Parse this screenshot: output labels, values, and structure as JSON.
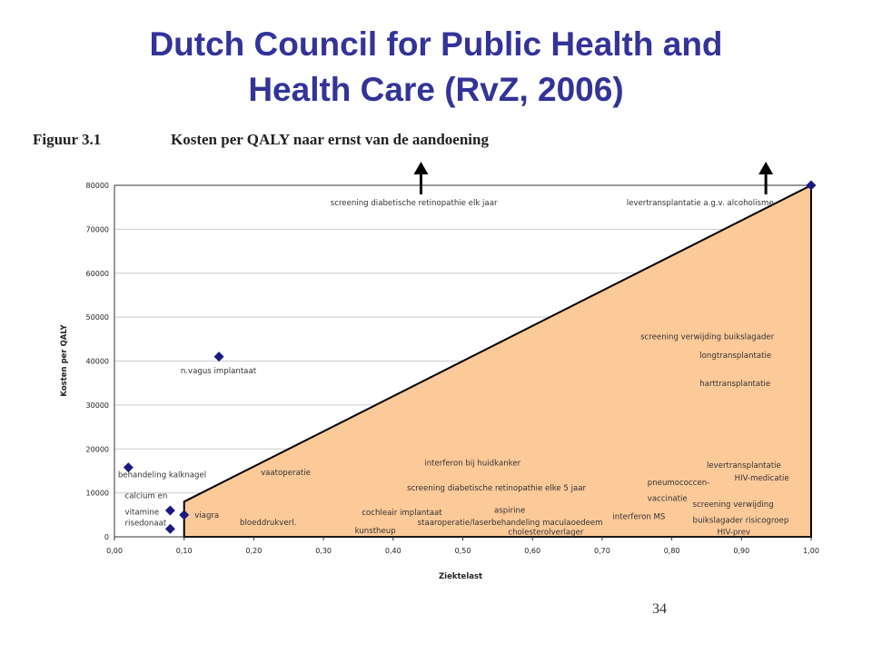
{
  "slide": {
    "title_line1": "Dutch Council for Public Health and",
    "title_line2": "Health Care (RvZ, 2006)",
    "figure_number": "Figuur 3.1",
    "figure_title": "Kosten per QALY naar ernst van de aandoening",
    "page_number": "34"
  },
  "colors": {
    "title": "#333399",
    "fill_region": "#fcc999",
    "marker": "#1a1a80"
  },
  "chart_data": {
    "type": "scatter",
    "title": "Kosten per QALY naar ernst van de aandoening",
    "xlabel": "Ziektelast",
    "ylabel": "Kosten per QALY",
    "xlim": [
      0,
      1
    ],
    "ylim": [
      0,
      80000
    ],
    "grid": "horizontal",
    "x_ticks": [
      "0,00",
      "0,10",
      "0,20",
      "0,30",
      "0,40",
      "0,50",
      "0,60",
      "0,70",
      "0,80",
      "0,90",
      "1,00"
    ],
    "y_ticks": [
      "0",
      "10000",
      "20000",
      "30000",
      "40000",
      "50000",
      "60000",
      "70000",
      "80000"
    ],
    "region": {
      "x": [
        0.1,
        0.1,
        1.0,
        1.0
      ],
      "y": [
        0,
        8000,
        80000,
        0
      ]
    },
    "points": [
      {
        "x": 0.02,
        "y": 15800
      },
      {
        "x": 0.08,
        "y": 6000
      },
      {
        "x": 0.08,
        "y": 1800
      },
      {
        "x": 0.1,
        "y": 5000
      },
      {
        "x": 0.15,
        "y": 41000
      },
      {
        "x": 1.0,
        "y": 80000
      }
    ],
    "arrows": [
      {
        "x": 0.44,
        "y": 80000
      },
      {
        "x": 0.935,
        "y": 80000
      }
    ],
    "annotations": [
      {
        "text": "screening diabetische retinopathie elk jaar",
        "x": 0.31,
        "y": 75500
      },
      {
        "text": "levertransplantatie a.g.v. alcoholisme",
        "x": 0.735,
        "y": 75500
      },
      {
        "text": "n.vagus implantaat",
        "x": 0.095,
        "y": 37200
      },
      {
        "text": "screening verwijding buikslagader",
        "x": 0.755,
        "y": 45000
      },
      {
        "text": "longtransplantatie",
        "x": 0.84,
        "y": 40700
      },
      {
        "text": "harttransplantatie",
        "x": 0.84,
        "y": 34300
      },
      {
        "text": "behandeling kalknagel",
        "x": 0.005,
        "y": 13500
      },
      {
        "text": "calcium en",
        "x": 0.015,
        "y": 8800
      },
      {
        "text": "vitamine",
        "x": 0.015,
        "y": 5100
      },
      {
        "text": "risedonaat",
        "x": 0.015,
        "y": 2600
      },
      {
        "text": "vaatoperatie",
        "x": 0.21,
        "y": 14100
      },
      {
        "text": "interferon bij huidkanker",
        "x": 0.445,
        "y": 16200
      },
      {
        "text": "levertransplantatie",
        "x": 0.85,
        "y": 15700
      },
      {
        "text": "HIV-medicatie",
        "x": 0.89,
        "y": 12800
      },
      {
        "text": "screening diabetische retinopathie elke 5 jaar",
        "x": 0.42,
        "y": 10500
      },
      {
        "text": "pneumococcen-",
        "x": 0.765,
        "y": 11800
      },
      {
        "text": "vaccinatie",
        "x": 0.765,
        "y": 8200
      },
      {
        "text": "screening verwijding",
        "x": 0.83,
        "y": 6800
      },
      {
        "text": "buikslagader risicogroep",
        "x": 0.83,
        "y": 3200
      },
      {
        "text": "HIV-prev",
        "x": 0.865,
        "y": 500
      },
      {
        "text": "viagra",
        "x": 0.115,
        "y": 4300
      },
      {
        "text": "bloeddrukverl.",
        "x": 0.18,
        "y": 2700
      },
      {
        "text": "cochleair implantaat",
        "x": 0.355,
        "y": 5000
      },
      {
        "text": "aspirine",
        "x": 0.545,
        "y": 5500
      },
      {
        "text": "interferon MS",
        "x": 0.715,
        "y": 4000
      },
      {
        "text": "kunstheup",
        "x": 0.345,
        "y": 800
      },
      {
        "text": "staaroperatie/laserbehandeling maculaoedeem",
        "x": 0.435,
        "y": 2700
      },
      {
        "text": "cholesterolverlager",
        "x": 0.565,
        "y": 500
      }
    ]
  }
}
